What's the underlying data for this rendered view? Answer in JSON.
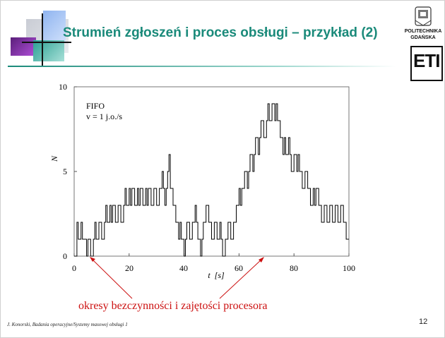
{
  "slide": {
    "title": "Strumień zgłoszeń i proces obsługi – przykład (2)",
    "annotation": "okresy bezczynności i zajętości procesora",
    "footer": "J. Konorski, Badania operacyjne/Systemy masowej obsługi 1",
    "page_number": "12",
    "logo_line1": "POLITECHNIKA",
    "logo_line2": "GDAŃSKA",
    "logo_text": "ETI",
    "colors": {
      "title": "#1a8a7a",
      "annotation": "#cc1111",
      "line": "#000000"
    }
  },
  "chart_data": {
    "type": "line",
    "step": true,
    "legend_line1": "FIFO",
    "legend_line2": "v = 1 j.o./s",
    "xlabel": "t  [s]",
    "ylabel": "N",
    "xlim": [
      0,
      100
    ],
    "ylim": [
      0,
      10
    ],
    "xticks": [
      "0",
      "20",
      "40",
      "60",
      "80",
      "100"
    ],
    "yticks": [
      "0",
      "5",
      "10"
    ],
    "grid": false,
    "series": [
      {
        "points": [
          [
            0,
            0
          ],
          [
            1,
            2
          ],
          [
            1.5,
            1
          ],
          [
            2.5,
            2
          ],
          [
            3,
            1
          ],
          [
            4.5,
            0
          ],
          [
            5,
            1
          ],
          [
            6,
            0
          ],
          [
            7,
            1
          ],
          [
            7.5,
            2
          ],
          [
            8,
            1
          ],
          [
            9,
            2
          ],
          [
            10,
            1
          ],
          [
            11,
            2
          ],
          [
            11.5,
            3
          ],
          [
            12,
            2
          ],
          [
            13,
            3
          ],
          [
            13.5,
            2
          ],
          [
            14,
            3
          ],
          [
            15,
            2
          ],
          [
            16,
            3
          ],
          [
            17,
            2
          ],
          [
            18,
            3
          ],
          [
            18.5,
            4
          ],
          [
            19,
            3
          ],
          [
            20,
            4
          ],
          [
            20.5,
            3
          ],
          [
            21,
            4
          ],
          [
            22,
            3
          ],
          [
            23,
            4
          ],
          [
            23.5,
            3
          ],
          [
            24,
            4
          ],
          [
            25,
            3
          ],
          [
            26,
            4
          ],
          [
            26.5,
            3
          ],
          [
            27,
            4
          ],
          [
            28,
            3
          ],
          [
            29,
            4
          ],
          [
            30,
            3
          ],
          [
            31,
            4
          ],
          [
            32,
            5
          ],
          [
            32.5,
            4
          ],
          [
            33,
            3
          ],
          [
            33.5,
            4
          ],
          [
            34,
            5
          ],
          [
            34.5,
            6
          ],
          [
            35,
            4
          ],
          [
            36,
            3
          ],
          [
            37,
            2
          ],
          [
            38,
            1
          ],
          [
            38.5,
            2
          ],
          [
            39,
            1
          ],
          [
            40,
            0
          ],
          [
            40.5,
            1
          ],
          [
            41,
            2
          ],
          [
            42,
            1
          ],
          [
            43,
            2
          ],
          [
            44,
            3
          ],
          [
            44.5,
            2
          ],
          [
            45,
            1
          ],
          [
            46,
            0
          ],
          [
            46.5,
            1
          ],
          [
            47,
            2
          ],
          [
            48,
            3
          ],
          [
            49,
            2
          ],
          [
            50,
            1
          ],
          [
            51,
            2
          ],
          [
            52,
            1
          ],
          [
            53,
            2
          ],
          [
            53.5,
            1
          ],
          [
            54,
            0
          ],
          [
            55,
            1
          ],
          [
            56,
            2
          ],
          [
            57,
            1
          ],
          [
            58,
            2
          ],
          [
            59,
            3
          ],
          [
            60,
            4
          ],
          [
            60.5,
            3
          ],
          [
            61,
            4
          ],
          [
            62,
            5
          ],
          [
            63,
            4
          ],
          [
            63.5,
            5
          ],
          [
            64,
            6
          ],
          [
            65,
            5
          ],
          [
            65.5,
            6
          ],
          [
            66,
            7
          ],
          [
            67,
            6
          ],
          [
            67.5,
            7
          ],
          [
            68,
            8
          ],
          [
            69,
            7
          ],
          [
            70,
            8
          ],
          [
            70.5,
            9
          ],
          [
            71,
            8
          ],
          [
            72,
            9
          ],
          [
            73,
            8
          ],
          [
            73.5,
            9
          ],
          [
            74,
            8
          ],
          [
            75,
            7
          ],
          [
            76,
            6
          ],
          [
            76.5,
            7
          ],
          [
            77,
            6
          ],
          [
            78,
            7
          ],
          [
            78.5,
            6
          ],
          [
            79,
            5
          ],
          [
            80,
            6
          ],
          [
            81,
            5
          ],
          [
            81.5,
            6
          ],
          [
            82,
            5
          ],
          [
            83,
            4
          ],
          [
            84,
            5
          ],
          [
            85,
            4
          ],
          [
            86,
            3
          ],
          [
            87,
            4
          ],
          [
            87.5,
            3
          ],
          [
            88,
            4
          ],
          [
            89,
            3
          ],
          [
            90,
            2
          ],
          [
            91,
            3
          ],
          [
            92,
            2
          ],
          [
            93,
            3
          ],
          [
            94,
            2
          ],
          [
            95,
            3
          ],
          [
            96,
            2
          ],
          [
            97,
            3
          ],
          [
            98,
            2
          ],
          [
            99,
            1
          ],
          [
            100,
            1
          ]
        ]
      }
    ]
  }
}
